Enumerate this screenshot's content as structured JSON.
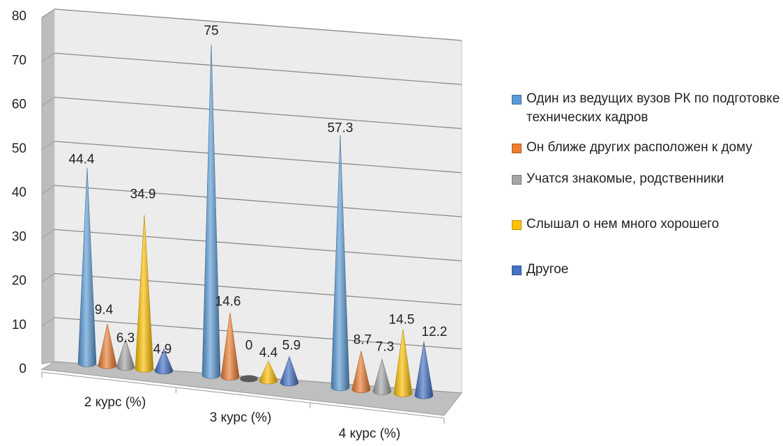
{
  "chart_data": {
    "type": "bar",
    "subtype": "3d-cone",
    "title": "",
    "xlabel": "",
    "ylabel": "",
    "ylim": [
      0,
      80
    ],
    "yticks": [
      0,
      10,
      20,
      30,
      40,
      50,
      60,
      70,
      80
    ],
    "grid": true,
    "legend_position": "right",
    "categories": [
      "2 курс (%)",
      "3 курс (%)",
      "4 курс (%)"
    ],
    "series": [
      {
        "name": "Один из ведущих  вузов РК по подготовке технических кадров",
        "color": "#5B9BD5",
        "values": [
          44.4,
          75,
          57.3
        ]
      },
      {
        "name": "Он ближе других расположен к дому",
        "color": "#ED7D31",
        "values": [
          9.4,
          14.6,
          8.7
        ]
      },
      {
        "name": "Учатся знакомые, родственники",
        "color": "#A5A5A5",
        "values": [
          6.3,
          0,
          7.3
        ]
      },
      {
        "name": "Слышал о нем много хорошего",
        "color": "#FFC000",
        "values": [
          34.9,
          4.4,
          14.5
        ]
      },
      {
        "name": "Другое",
        "color": "#4472C4",
        "values": [
          4.9,
          5.9,
          12.2
        ]
      }
    ],
    "data_labels": [
      [
        "44.4",
        "75",
        "57.3"
      ],
      [
        "9.4",
        "14.6",
        "8.7"
      ],
      [
        "6.3",
        "0",
        "7.3"
      ],
      [
        "34.9",
        "4.4",
        "14.5"
      ],
      [
        "4.9",
        "5.9",
        "12.2"
      ]
    ]
  }
}
